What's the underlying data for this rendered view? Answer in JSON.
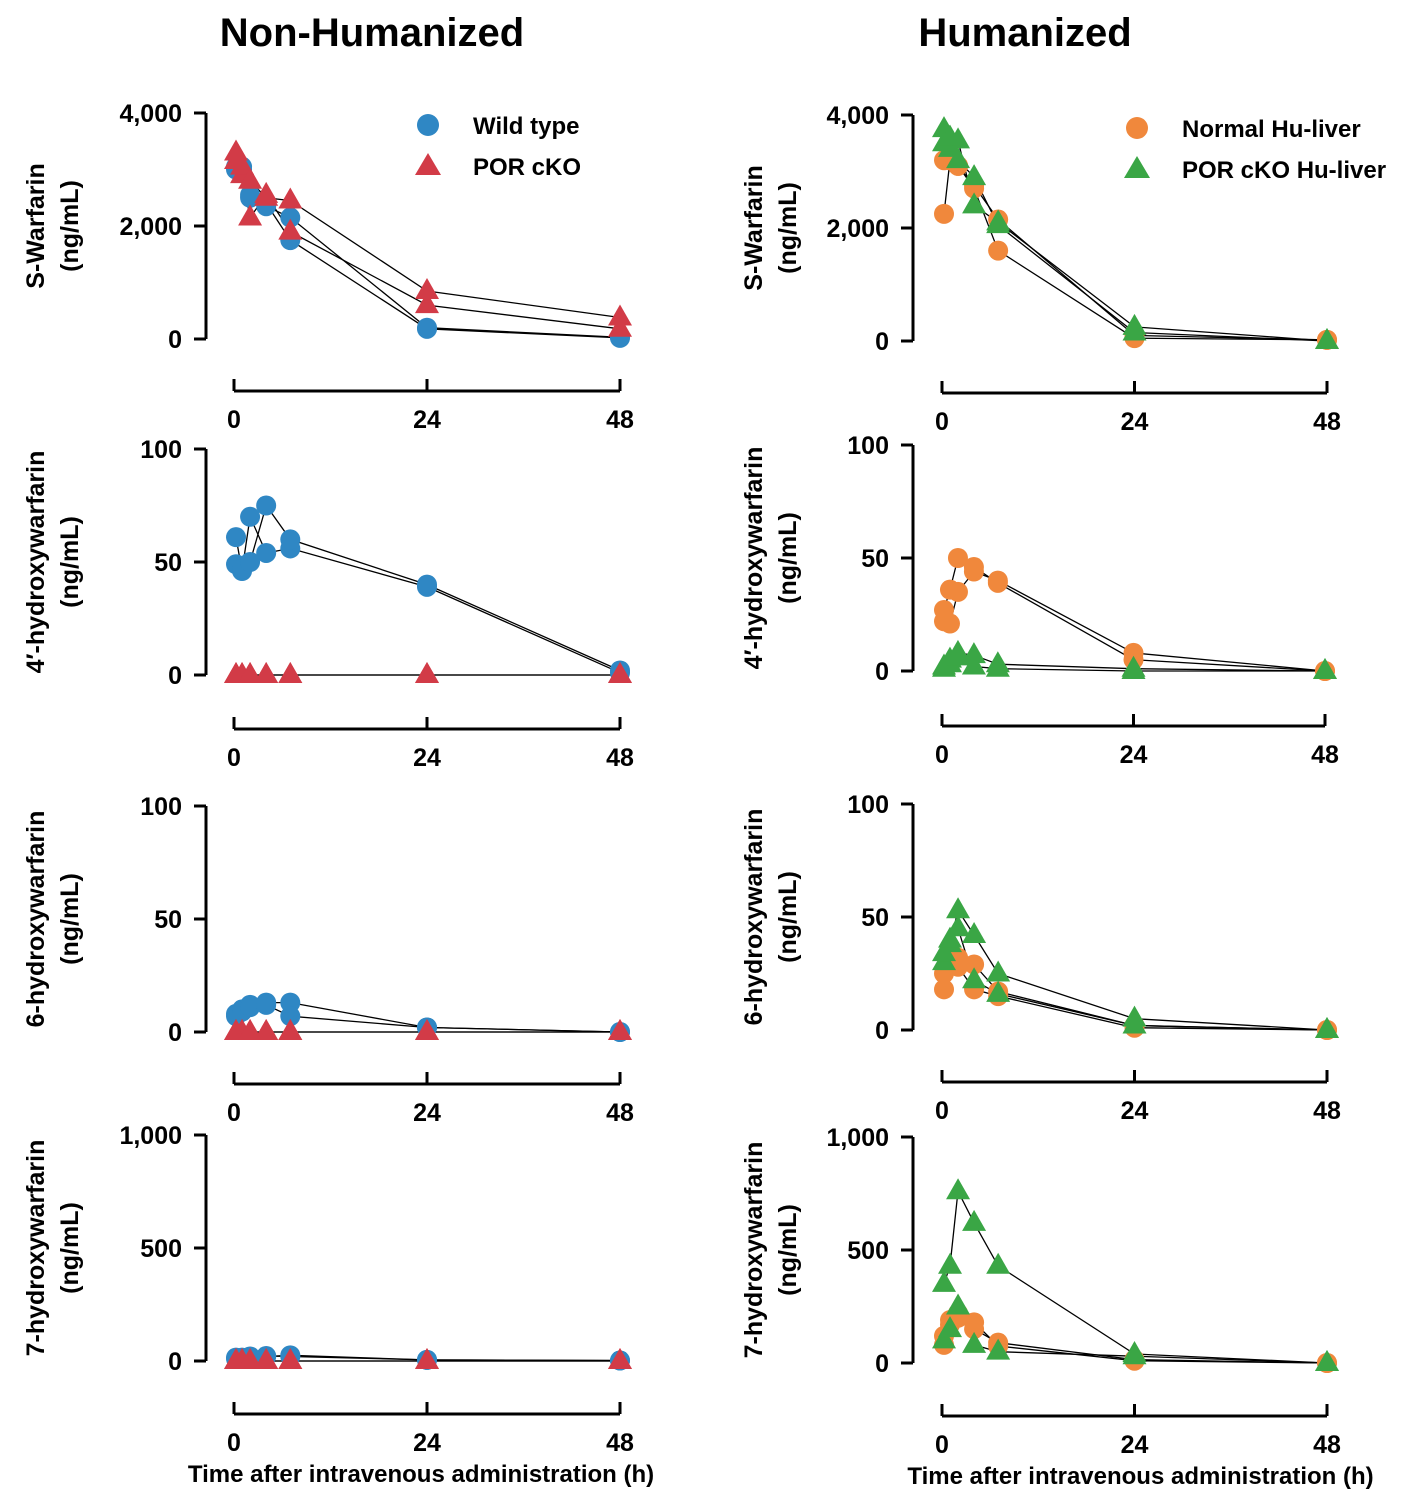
{
  "colors": {
    "wild_type": "#2f87c4",
    "por_cko": "#d23b47",
    "normal_hu": "#f0883c",
    "por_cko_hu": "#3aa645"
  },
  "chart_data": [
    {
      "id": "nh-swarfarin",
      "column": "Non-Humanized",
      "type": "scatter",
      "column_title": "Non-Humanized",
      "ylabel": [
        "S-Warfarin",
        "(ng/mL)"
      ],
      "xlabel": "",
      "ylim": [
        0,
        4000
      ],
      "yticks": [
        "0",
        "2,000",
        "4,000"
      ],
      "ytick_values": [
        0,
        2000,
        4000
      ],
      "xlim": [
        0,
        48
      ],
      "xticks": [
        "0",
        "24",
        "48"
      ],
      "xtick_values": [
        0,
        24,
        48
      ],
      "legend": [
        {
          "label": "Wild type",
          "marker": "circle",
          "color": "#2f87c4"
        },
        {
          "label": "POR cKO",
          "marker": "triangle",
          "color": "#d23b47"
        }
      ],
      "series": [
        {
          "group": "Wild type",
          "marker": "circle",
          "color": "#2f87c4",
          "x": [
            0.25,
            1,
            2,
            4,
            7,
            24,
            48
          ],
          "y": [
            3050,
            3000,
            2550,
            2400,
            1750,
            180,
            20
          ]
        },
        {
          "group": "Wild type",
          "marker": "circle",
          "color": "#2f87c4",
          "x": [
            0.25,
            1,
            2,
            4,
            7,
            24,
            48
          ],
          "y": [
            3000,
            3050,
            2500,
            2350,
            2150,
            200,
            30
          ]
        },
        {
          "group": "POR cKO",
          "marker": "triangle",
          "color": "#d23b47",
          "x": [
            0.25,
            1,
            2,
            4,
            7,
            24,
            48
          ],
          "y": [
            3300,
            2900,
            2150,
            2550,
            1900,
            600,
            180
          ]
        },
        {
          "group": "POR cKO",
          "marker": "triangle",
          "color": "#d23b47",
          "x": [
            0.25,
            1,
            2,
            4,
            7,
            24,
            48
          ],
          "y": [
            3150,
            3050,
            2800,
            2500,
            2450,
            850,
            380
          ]
        }
      ]
    },
    {
      "id": "nh-4oh",
      "column": "Non-Humanized",
      "type": "scatter",
      "ylabel": [
        "4′-hydroxywarfarin",
        "(ng/mL)"
      ],
      "xlabel": "",
      "ylim": [
        0,
        100
      ],
      "yticks": [
        "0",
        "50",
        "100"
      ],
      "ytick_values": [
        0,
        50,
        100
      ],
      "xlim": [
        0,
        48
      ],
      "xticks": [
        "0",
        "24",
        "48"
      ],
      "xtick_values": [
        0,
        24,
        48
      ],
      "series": [
        {
          "group": "Wild type",
          "marker": "circle",
          "color": "#2f87c4",
          "x": [
            0.25,
            1,
            2,
            4,
            7,
            24,
            48
          ],
          "y": [
            61,
            46,
            70,
            54,
            56,
            39,
            1
          ]
        },
        {
          "group": "Wild type",
          "marker": "circle",
          "color": "#2f87c4",
          "x": [
            0.25,
            1,
            2,
            4,
            7,
            24,
            48
          ],
          "y": [
            49,
            47,
            50,
            75,
            60,
            40,
            2
          ]
        },
        {
          "group": "POR cKO",
          "marker": "triangle",
          "color": "#d23b47",
          "x": [
            0.25,
            1,
            2,
            4,
            7,
            24,
            48
          ],
          "y": [
            0,
            0,
            0,
            0,
            0,
            0,
            0
          ]
        },
        {
          "group": "POR cKO",
          "marker": "triangle",
          "color": "#d23b47",
          "x": [
            0.25,
            1,
            2,
            4,
            7,
            24,
            48
          ],
          "y": [
            0,
            0,
            0,
            0,
            0,
            0,
            0
          ]
        }
      ]
    },
    {
      "id": "nh-6oh",
      "column": "Non-Humanized",
      "type": "scatter",
      "ylabel": [
        "6-hydroxywarfarin",
        "(ng/mL)"
      ],
      "xlabel": "",
      "ylim": [
        0,
        100
      ],
      "yticks": [
        "0",
        "50",
        "100"
      ],
      "ytick_values": [
        0,
        50,
        100
      ],
      "xlim": [
        0,
        48
      ],
      "xticks": [
        "0",
        "24",
        "48"
      ],
      "xtick_values": [
        0,
        24,
        48
      ],
      "series": [
        {
          "group": "Wild type",
          "marker": "circle",
          "color": "#2f87c4",
          "x": [
            0.25,
            1,
            2,
            4,
            7,
            24,
            48
          ],
          "y": [
            8,
            10,
            12,
            13,
            13,
            2,
            0
          ]
        },
        {
          "group": "Wild type",
          "marker": "circle",
          "color": "#2f87c4",
          "x": [
            0.25,
            1,
            2,
            4,
            7,
            24,
            48
          ],
          "y": [
            7,
            9,
            11,
            12,
            7,
            2,
            0
          ]
        },
        {
          "group": "POR cKO",
          "marker": "triangle",
          "color": "#d23b47",
          "x": [
            0.25,
            1,
            2,
            4,
            7,
            24,
            48
          ],
          "y": [
            0,
            0,
            0,
            0,
            0,
            0,
            0
          ]
        },
        {
          "group": "POR cKO",
          "marker": "triangle",
          "color": "#d23b47",
          "x": [
            0.25,
            1,
            2,
            4,
            7,
            24,
            48
          ],
          "y": [
            0,
            0,
            0,
            0,
            0,
            0,
            0
          ]
        }
      ]
    },
    {
      "id": "nh-7oh",
      "column": "Non-Humanized",
      "type": "scatter",
      "ylabel": [
        "7-hydroxywarfarin",
        "(ng/mL)"
      ],
      "xlabel": "Time after intravenous administration (h)",
      "ylim": [
        0,
        1000
      ],
      "yticks": [
        "0",
        "500",
        "1,000"
      ],
      "ytick_values": [
        0,
        500,
        1000
      ],
      "xlim": [
        0,
        48
      ],
      "xticks": [
        "0",
        "24",
        "48"
      ],
      "xtick_values": [
        0,
        24,
        48
      ],
      "series": [
        {
          "group": "Wild type",
          "marker": "circle",
          "color": "#2f87c4",
          "x": [
            0.25,
            1,
            2,
            4,
            7,
            24,
            48
          ],
          "y": [
            15,
            15,
            20,
            20,
            25,
            5,
            2
          ]
        },
        {
          "group": "Wild type",
          "marker": "circle",
          "color": "#2f87c4",
          "x": [
            0.25,
            1,
            2,
            4,
            7,
            24,
            48
          ],
          "y": [
            10,
            12,
            18,
            22,
            20,
            5,
            2
          ]
        },
        {
          "group": "POR cKO",
          "marker": "triangle",
          "color": "#d23b47",
          "x": [
            0.25,
            1,
            2,
            4,
            7,
            24,
            48
          ],
          "y": [
            0,
            0,
            0,
            0,
            0,
            0,
            0
          ]
        },
        {
          "group": "POR cKO",
          "marker": "triangle",
          "color": "#d23b47",
          "x": [
            0.25,
            1,
            2,
            4,
            7,
            24,
            48
          ],
          "y": [
            0,
            0,
            0,
            0,
            0,
            0,
            0
          ]
        }
      ]
    },
    {
      "id": "hu-swarfarin",
      "column": "Humanized",
      "type": "scatter",
      "column_title": "Humanized",
      "ylabel": [
        "S-Warfarin",
        "(ng/mL)"
      ],
      "xlabel": "",
      "ylim": [
        0,
        4000
      ],
      "yticks": [
        "0",
        "2,000",
        "4,000"
      ],
      "ytick_values": [
        0,
        2000,
        4000
      ],
      "xlim": [
        0,
        48
      ],
      "xticks": [
        "0",
        "24",
        "48"
      ],
      "xtick_values": [
        0,
        24,
        48
      ],
      "legend": [
        {
          "label": "Normal Hu-liver",
          "marker": "circle",
          "color": "#f0883c"
        },
        {
          "label": "POR cKO Hu-liver",
          "marker": "triangle",
          "color": "#3aa645"
        }
      ],
      "series": [
        {
          "group": "Normal Hu-liver",
          "marker": "circle",
          "color": "#f0883c",
          "x": [
            0.25,
            1,
            2,
            4,
            7,
            24,
            48
          ],
          "y": [
            2250,
            3200,
            3100,
            2700,
            1600,
            50,
            20
          ]
        },
        {
          "group": "Normal Hu-liver",
          "marker": "circle",
          "color": "#f0883c",
          "x": [
            0.25,
            1,
            2,
            4,
            7,
            24,
            48
          ],
          "y": [
            3200,
            3300,
            3100,
            2750,
            2150,
            100,
            20
          ]
        },
        {
          "group": "POR cKO Hu-liver",
          "marker": "triangle",
          "color": "#3aa645",
          "x": [
            0.25,
            1,
            2,
            4,
            7,
            24,
            48
          ],
          "y": [
            3750,
            3400,
            3550,
            2400,
            2100,
            250,
            0
          ]
        },
        {
          "group": "POR cKO Hu-liver",
          "marker": "triangle",
          "color": "#3aa645",
          "x": [
            0.25,
            1,
            2,
            4,
            7,
            24,
            48
          ],
          "y": [
            3500,
            3600,
            3200,
            2900,
            2050,
            150,
            0
          ]
        }
      ]
    },
    {
      "id": "hu-4oh",
      "column": "Humanized",
      "type": "scatter",
      "ylabel": [
        "4′-hydroxywarfarin",
        "(ng/mL)"
      ],
      "xlabel": "",
      "ylim": [
        0,
        100
      ],
      "yticks": [
        "0",
        "50",
        "100"
      ],
      "ytick_values": [
        0,
        50,
        100
      ],
      "xlim": [
        0,
        48
      ],
      "xticks": [
        "0",
        "24",
        "48"
      ],
      "xtick_values": [
        0,
        24,
        48
      ],
      "series": [
        {
          "group": "Normal Hu-liver",
          "marker": "circle",
          "color": "#f0883c",
          "x": [
            0.25,
            1,
            2,
            4,
            7,
            24,
            48
          ],
          "y": [
            27,
            36,
            50,
            46,
            39,
            5,
            0
          ]
        },
        {
          "group": "Normal Hu-liver",
          "marker": "circle",
          "color": "#f0883c",
          "x": [
            0.25,
            1,
            2,
            4,
            7,
            24,
            48
          ],
          "y": [
            22,
            21,
            35,
            44,
            40,
            8,
            0
          ]
        },
        {
          "group": "POR cKO Hu-liver",
          "marker": "triangle",
          "color": "#3aa645",
          "x": [
            0.25,
            1,
            2,
            4,
            7,
            24,
            48
          ],
          "y": [
            2,
            5,
            8,
            7,
            3,
            1,
            0
          ]
        },
        {
          "group": "POR cKO Hu-liver",
          "marker": "triangle",
          "color": "#3aa645",
          "x": [
            0.25,
            1,
            2,
            4,
            7,
            24,
            48
          ],
          "y": [
            1,
            3,
            6,
            2,
            1,
            0,
            0
          ]
        }
      ]
    },
    {
      "id": "hu-6oh",
      "column": "Humanized",
      "type": "scatter",
      "ylabel": [
        "6-hydroxywarfarin",
        "(ng/mL)"
      ],
      "xlabel": "",
      "ylim": [
        0,
        100
      ],
      "yticks": [
        "0",
        "50",
        "100"
      ],
      "ytick_values": [
        0,
        50,
        100
      ],
      "xlim": [
        0,
        48
      ],
      "xticks": [
        "0",
        "24",
        "48"
      ],
      "xtick_values": [
        0,
        24,
        48
      ],
      "series": [
        {
          "group": "Normal Hu-liver",
          "marker": "circle",
          "color": "#f0883c",
          "x": [
            0.25,
            1,
            2,
            4,
            7,
            24,
            48
          ],
          "y": [
            18,
            30,
            28,
            18,
            15,
            1,
            0
          ]
        },
        {
          "group": "Normal Hu-liver",
          "marker": "circle",
          "color": "#f0883c",
          "x": [
            0.25,
            1,
            2,
            4,
            7,
            24,
            48
          ],
          "y": [
            25,
            35,
            32,
            29,
            17,
            2,
            0
          ]
        },
        {
          "group": "POR cKO Hu-liver",
          "marker": "triangle",
          "color": "#3aa645",
          "x": [
            0.25,
            1,
            2,
            4,
            7,
            24,
            48
          ],
          "y": [
            30,
            38,
            53,
            42,
            25,
            5,
            0
          ]
        },
        {
          "group": "POR cKO Hu-liver",
          "marker": "triangle",
          "color": "#3aa645",
          "x": [
            0.25,
            1,
            2,
            4,
            7,
            24,
            48
          ],
          "y": [
            34,
            40,
            45,
            22,
            16,
            2,
            0
          ]
        }
      ]
    },
    {
      "id": "hu-7oh",
      "column": "Humanized",
      "type": "scatter",
      "ylabel": [
        "7-hydroxywarfarin",
        "(ng/mL)"
      ],
      "xlabel": "Time after intravenous administration (h)",
      "ylim": [
        0,
        1000
      ],
      "yticks": [
        "0",
        "500",
        "1,000"
      ],
      "ytick_values": [
        0,
        500,
        1000
      ],
      "xlim": [
        0,
        48
      ],
      "xticks": [
        "0",
        "24",
        "48"
      ],
      "xtick_values": [
        0,
        24,
        48
      ],
      "series": [
        {
          "group": "Normal Hu-liver",
          "marker": "circle",
          "color": "#f0883c",
          "x": [
            0.25,
            1,
            2,
            4,
            7,
            24,
            48
          ],
          "y": [
            80,
            170,
            220,
            180,
            75,
            10,
            0
          ]
        },
        {
          "group": "Normal Hu-liver",
          "marker": "circle",
          "color": "#f0883c",
          "x": [
            0.25,
            1,
            2,
            4,
            7,
            24,
            48
          ],
          "y": [
            120,
            190,
            200,
            150,
            90,
            15,
            0
          ]
        },
        {
          "group": "POR cKO Hu-liver",
          "marker": "triangle",
          "color": "#3aa645",
          "x": [
            0.25,
            1,
            2,
            4,
            7,
            24,
            48
          ],
          "y": [
            350,
            430,
            760,
            620,
            430,
            40,
            0
          ]
        },
        {
          "group": "POR cKO Hu-liver",
          "marker": "triangle",
          "color": "#3aa645",
          "x": [
            0.25,
            1,
            2,
            4,
            7,
            24,
            48
          ],
          "y": [
            100,
            150,
            250,
            80,
            50,
            30,
            0
          ]
        }
      ]
    }
  ]
}
